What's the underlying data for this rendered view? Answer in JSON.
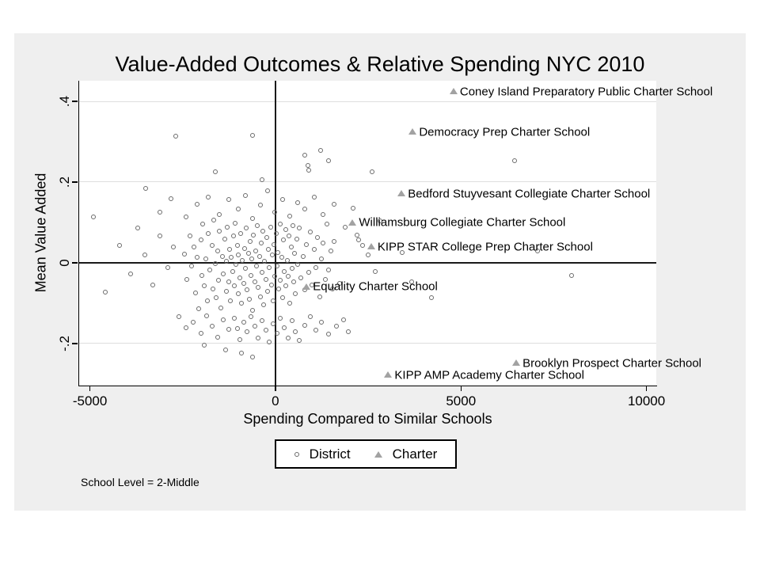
{
  "window": {
    "background": "#ffffff",
    "graph_background": "#efefef"
  },
  "chart_data": {
    "type": "scatter",
    "title": "Value-Added Outcomes & Relative Spending NYC 2010",
    "xlabel": "Spending Compared to Similar Schools",
    "ylabel": "Mean Value Added",
    "note": "School Level = 2-Middle",
    "xlim": [
      -5290,
      10265
    ],
    "ylim": [
      -0.304,
      0.451
    ],
    "x_ticks": [
      {
        "v": -5000,
        "label": "-5000"
      },
      {
        "v": 0,
        "label": "0"
      },
      {
        "v": 5000,
        "label": "5000"
      },
      {
        "v": 10000,
        "label": "10000"
      }
    ],
    "y_ticks": [
      {
        "v": -0.2,
        "label": "-.2"
      },
      {
        "v": 0,
        "label": "0"
      },
      {
        "v": 0.2,
        "label": ".2"
      },
      {
        "v": 0.4,
        "label": ".4"
      }
    ],
    "reference_lines": {
      "x": 0,
      "y": 0
    },
    "grid": "horizontal-light-at-yticks",
    "legend": {
      "position": "bottom-center",
      "items": [
        {
          "marker": "circle-hollow",
          "label": "District"
        },
        {
          "marker": "triangle-filled",
          "label": "Charter"
        }
      ]
    },
    "colors": {
      "district_marker": "#6b6b6b",
      "charter_marker": "#a2a2a2",
      "gridline": "#dedede",
      "axis": "#000000"
    },
    "series": [
      {
        "name": "District",
        "marker": "circle-hollow",
        "points": [
          [
            -2450,
            0.021
          ],
          [
            -2380,
            -0.042
          ],
          [
            -2300,
            0.065
          ],
          [
            -2250,
            -0.008
          ],
          [
            -2180,
            0.038
          ],
          [
            -2150,
            -0.075
          ],
          [
            -2100,
            0.012
          ],
          [
            -2050,
            -0.115
          ],
          [
            -2000,
            0.055
          ],
          [
            -1980,
            -0.032
          ],
          [
            -1950,
            0.095
          ],
          [
            -1900,
            -0.058
          ],
          [
            -1870,
            0.008
          ],
          [
            -1820,
            -0.095
          ],
          [
            -1800,
            0.072
          ],
          [
            -1750,
            -0.018
          ],
          [
            -1700,
            0.042
          ],
          [
            -1680,
            -0.065
          ],
          [
            -1650,
            0.105
          ],
          [
            -1600,
            -0.002
          ],
          [
            -1580,
            -0.088
          ],
          [
            -1550,
            0.028
          ],
          [
            -1520,
            -0.045
          ],
          [
            -1500,
            0.078
          ],
          [
            -1450,
            -0.112
          ],
          [
            -1420,
            0.015
          ],
          [
            -1400,
            -0.028
          ],
          [
            -1350,
            0.058
          ],
          [
            -1320,
            -0.072
          ],
          [
            -1300,
            0.002
          ],
          [
            -1280,
            0.088
          ],
          [
            -1250,
            -0.048
          ],
          [
            -1220,
            0.032
          ],
          [
            -1200,
            -0.095
          ],
          [
            -1180,
            0.012
          ],
          [
            -1150,
            -0.022
          ],
          [
            -1120,
            0.065
          ],
          [
            -1100,
            -0.058
          ],
          [
            -1080,
            0.098
          ],
          [
            -1050,
            -0.005
          ],
          [
            -1020,
            0.042
          ],
          [
            -1000,
            -0.078
          ],
          [
            -980,
            0.018
          ],
          [
            -950,
            -0.038
          ],
          [
            -920,
            0.072
          ],
          [
            -900,
            -0.102
          ],
          [
            -880,
            0.005
          ],
          [
            -850,
            -0.052
          ],
          [
            -820,
            0.035
          ],
          [
            -800,
            -0.015
          ],
          [
            -780,
            0.085
          ],
          [
            -750,
            -0.068
          ],
          [
            -720,
            0.022
          ],
          [
            -700,
            -0.092
          ],
          [
            -680,
            0.052
          ],
          [
            -650,
            -0.032
          ],
          [
            -620,
            0.008
          ],
          [
            -600,
            -0.118
          ],
          [
            -580,
            0.068
          ],
          [
            -550,
            -0.048
          ],
          [
            -520,
            0.028
          ],
          [
            -500,
            -0.008
          ],
          [
            -480,
            0.092
          ],
          [
            -450,
            -0.062
          ],
          [
            -420,
            0.015
          ],
          [
            -400,
            -0.085
          ],
          [
            -380,
            0.048
          ],
          [
            -350,
            -0.025
          ],
          [
            -320,
            0.078
          ],
          [
            -300,
            -0.105
          ],
          [
            -280,
            0.002
          ],
          [
            -250,
            -0.042
          ],
          [
            -220,
            0.062
          ],
          [
            -200,
            -0.072
          ],
          [
            -180,
            0.032
          ],
          [
            -150,
            -0.012
          ],
          [
            -120,
            0.088
          ],
          [
            -100,
            -0.055
          ],
          [
            -80,
            0.018
          ],
          [
            -50,
            -0.095
          ],
          [
            -20,
            0.045
          ],
          [
            0,
            -0.035
          ],
          [
            30,
            0.072
          ],
          [
            50,
            -0.008
          ],
          [
            80,
            0.025
          ],
          [
            100,
            -0.065
          ],
          [
            130,
            0.095
          ],
          [
            150,
            -0.045
          ],
          [
            180,
            0.012
          ],
          [
            200,
            -0.088
          ],
          [
            230,
            0.055
          ],
          [
            250,
            -0.022
          ],
          [
            280,
            0.082
          ],
          [
            300,
            -0.058
          ],
          [
            330,
            0.005
          ],
          [
            350,
            -0.035
          ],
          [
            380,
            0.065
          ],
          [
            400,
            -0.102
          ],
          [
            430,
            0.038
          ],
          [
            450,
            -0.015
          ],
          [
            480,
            0.092
          ],
          [
            500,
            -0.048
          ],
          [
            530,
            0.022
          ],
          [
            550,
            -0.078
          ],
          [
            580,
            0.058
          ],
          [
            600,
            -0.005
          ],
          [
            650,
            0.085
          ],
          [
            700,
            -0.038
          ],
          [
            750,
            0.015
          ],
          [
            800,
            -0.068
          ],
          [
            850,
            0.045
          ],
          [
            900,
            -0.025
          ],
          [
            950,
            0.075
          ],
          [
            1000,
            -0.055
          ],
          [
            1050,
            0.032
          ],
          [
            1100,
            -0.012
          ],
          [
            1150,
            0.062
          ],
          [
            1200,
            -0.085
          ],
          [
            1250,
            0.008
          ],
          [
            1300,
            0.048
          ],
          [
            1350,
            -0.042
          ],
          [
            1400,
            0.095
          ],
          [
            1450,
            -0.018
          ],
          [
            1500,
            0.028
          ],
          [
            1550,
            -0.065
          ],
          [
            1600,
            0.052
          ],
          [
            1750,
            -0.052
          ],
          [
            1900,
            0.088
          ],
          [
            -3480,
            0.184
          ],
          [
            -3100,
            0.125
          ],
          [
            -2800,
            0.158
          ],
          [
            -2400,
            0.112
          ],
          [
            -2100,
            0.145
          ],
          [
            -1800,
            0.162
          ],
          [
            -1500,
            0.118
          ],
          [
            -1250,
            0.155
          ],
          [
            -1000,
            0.132
          ],
          [
            -800,
            0.165
          ],
          [
            -600,
            0.108
          ],
          [
            -400,
            0.142
          ],
          [
            -200,
            0.178
          ],
          [
            0,
            0.125
          ],
          [
            200,
            0.155
          ],
          [
            400,
            0.115
          ],
          [
            600,
            0.148
          ],
          [
            800,
            0.132
          ],
          [
            1050,
            0.162
          ],
          [
            1300,
            0.118
          ],
          [
            1600,
            0.145
          ],
          [
            2100,
            0.135
          ],
          [
            -2680,
            0.313
          ],
          [
            -600,
            0.314
          ],
          [
            800,
            0.265
          ],
          [
            1230,
            0.278
          ],
          [
            900,
            0.229
          ],
          [
            -1600,
            0.225
          ],
          [
            2620,
            0.224
          ],
          [
            890,
            0.241
          ],
          [
            -350,
            0.205
          ],
          [
            1450,
            0.252
          ],
          [
            6460,
            0.251
          ],
          [
            -4900,
            0.112
          ],
          [
            -4580,
            -0.073
          ],
          [
            -4200,
            0.042
          ],
          [
            -3900,
            -0.028
          ],
          [
            -3700,
            0.085
          ],
          [
            -3500,
            0.018
          ],
          [
            -3300,
            -0.055
          ],
          [
            -3100,
            0.065
          ],
          [
            -2900,
            -0.012
          ],
          [
            -2750,
            0.038
          ],
          [
            -2600,
            -0.135
          ],
          [
            -2400,
            -0.162
          ],
          [
            -2200,
            -0.148
          ],
          [
            -2000,
            -0.175
          ],
          [
            -1850,
            -0.132
          ],
          [
            -1700,
            -0.158
          ],
          [
            -1550,
            -0.185
          ],
          [
            -1400,
            -0.142
          ],
          [
            -1340,
            -0.216
          ],
          [
            -1250,
            -0.165
          ],
          [
            -1100,
            -0.138
          ],
          [
            -1020,
            -0.163
          ],
          [
            -950,
            -0.192
          ],
          [
            -850,
            -0.148
          ],
          [
            -750,
            -0.172
          ],
          [
            -650,
            -0.135
          ],
          [
            -600,
            -0.235
          ],
          [
            -550,
            -0.158
          ],
          [
            -450,
            -0.188
          ],
          [
            -350,
            -0.145
          ],
          [
            -250,
            -0.168
          ],
          [
            -150,
            -0.198
          ],
          [
            -50,
            -0.152
          ],
          [
            50,
            -0.175
          ],
          [
            150,
            -0.138
          ],
          [
            250,
            -0.162
          ],
          [
            350,
            -0.188
          ],
          [
            450,
            -0.145
          ],
          [
            550,
            -0.172
          ],
          [
            650,
            -0.194
          ],
          [
            800,
            -0.155
          ],
          [
            950,
            -0.135
          ],
          [
            1100,
            -0.168
          ],
          [
            1250,
            -0.148
          ],
          [
            1450,
            -0.178
          ],
          [
            1650,
            -0.158
          ],
          [
            1850,
            -0.142
          ],
          [
            1980,
            -0.171
          ],
          [
            -1900,
            -0.205
          ],
          [
            -900,
            -0.225
          ],
          [
            2250,
            0.055
          ],
          [
            2500,
            0.018
          ],
          [
            2700,
            -0.022
          ],
          [
            2830,
            0.102
          ],
          [
            3430,
            0.025
          ],
          [
            3680,
            -0.048
          ],
          [
            4215,
            -0.088
          ],
          [
            7080,
            0.029
          ],
          [
            7990,
            -0.032
          ],
          [
            2200,
            0.068
          ],
          [
            2350,
            0.042
          ]
        ]
      },
      {
        "name": "Charter",
        "marker": "triangle-filled",
        "points": [
          {
            "x": 4800,
            "y": 0.425,
            "label": "Coney Island Preparatory Public Charter School"
          },
          {
            "x": 3700,
            "y": 0.325,
            "label": "Democracy Prep Charter School"
          },
          {
            "x": 3400,
            "y": 0.172,
            "label": "Bedford Stuyvesant Collegiate Charter School"
          },
          {
            "x": 2080,
            "y": 0.1,
            "label": "Williamsburg Collegiate Charter School"
          },
          {
            "x": 2580,
            "y": 0.041,
            "label": "KIPP STAR College Prep Charter School"
          },
          {
            "x": 840,
            "y": -0.058,
            "label": "Equality Charter School"
          },
          {
            "x": 6490,
            "y": -0.248,
            "label": "Brooklyn Prospect Charter School"
          },
          {
            "x": 3040,
            "y": -0.277,
            "label": "KIPP AMP Academy Charter School"
          }
        ]
      }
    ]
  }
}
